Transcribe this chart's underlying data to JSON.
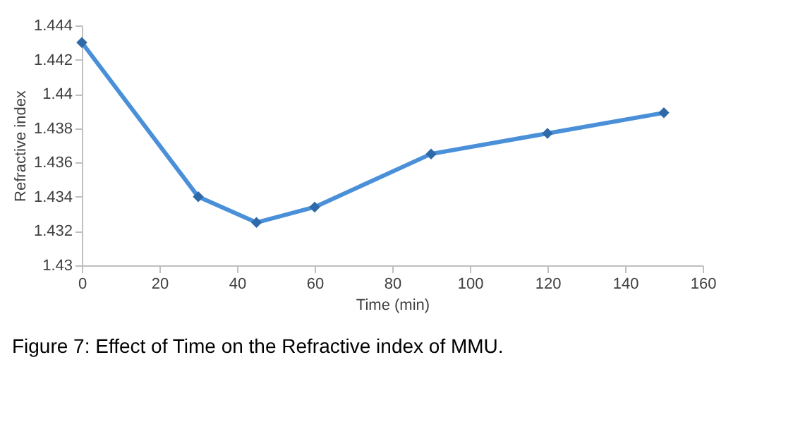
{
  "chart_data": {
    "type": "line",
    "xlabel": "Time (min)",
    "ylabel": "Refractive index",
    "x": [
      0,
      30,
      45,
      60,
      90,
      120,
      150
    ],
    "series": [
      {
        "color": "#4a90d9",
        "values": [
          1.443,
          1.434,
          1.4325,
          1.4334,
          1.4365,
          1.4377,
          1.4389
        ]
      }
    ],
    "xlim": [
      0,
      160
    ],
    "xticks": [
      0,
      20,
      40,
      60,
      80,
      100,
      120,
      140,
      160
    ],
    "ylim": [
      1.43,
      1.444
    ],
    "yticks": [
      1.43,
      1.432,
      1.434,
      1.436,
      1.438,
      1.44,
      1.442,
      1.444
    ],
    "grid": false,
    "legend": false,
    "marker": "diamond",
    "line_style": "solid",
    "annotations": [
      "Figure 7: Effect of Time on the Refractive index of MMU."
    ]
  }
}
